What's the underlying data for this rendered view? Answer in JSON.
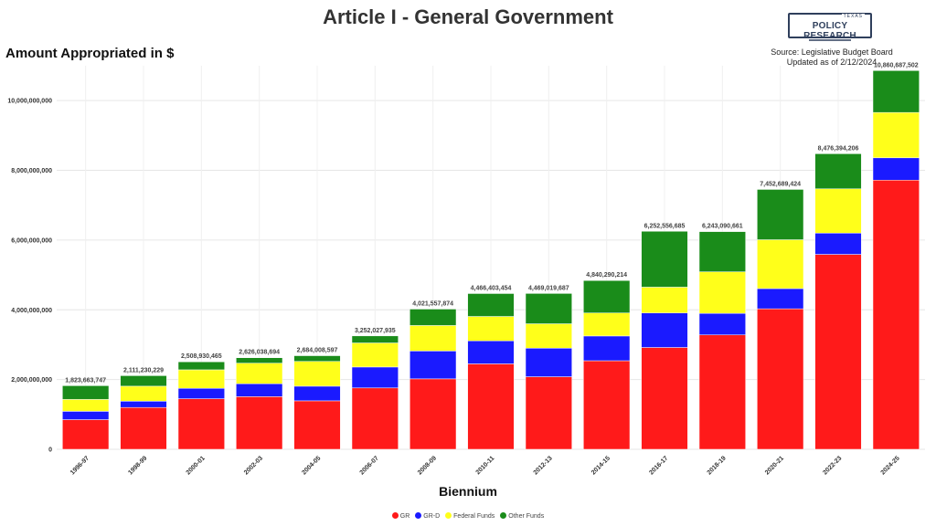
{
  "chart_data": {
    "type": "bar",
    "stacked": true,
    "title": "Article I - General Government",
    "ylabel": "Amount Appropriated in $",
    "xlabel": "Biennium",
    "ylim": [
      0,
      11000000000
    ],
    "yticks": [
      0,
      2000000000,
      4000000000,
      6000000000,
      8000000000,
      10000000000
    ],
    "ytick_labels": [
      "0",
      "2,000,000,000",
      "4,000,000,000",
      "6,000,000,000",
      "8,000,000,000",
      "10,000,000,000"
    ],
    "grid": true,
    "legend": "bottom-center",
    "categories": [
      "1996-97",
      "1998-99",
      "2000-01",
      "2002-03",
      "2004-05",
      "2006-07",
      "2008-09",
      "2010-11",
      "2012-13",
      "2014-15",
      "2016-17",
      "2018-19",
      "2020-21",
      "2022-23",
      "2024-25"
    ],
    "series": [
      {
        "name": "GR",
        "color": "#ff1a1a",
        "values": [
          850000000,
          1200000000,
          1450000000,
          1510000000,
          1390000000,
          1760000000,
          2020000000,
          2450000000,
          2080000000,
          2540000000,
          2920000000,
          3280000000,
          4030000000,
          5590000000,
          7720000000
        ]
      },
      {
        "name": "GR-D",
        "color": "#1a1aff",
        "values": [
          240000000,
          180000000,
          300000000,
          370000000,
          420000000,
          600000000,
          800000000,
          660000000,
          820000000,
          710000000,
          990000000,
          620000000,
          580000000,
          610000000,
          640000000
        ]
      },
      {
        "name": "Federal Funds",
        "color": "#ffff1a",
        "values": [
          340000000,
          430000000,
          530000000,
          590000000,
          710000000,
          690000000,
          730000000,
          700000000,
          700000000,
          660000000,
          740000000,
          1190000000,
          1400000000,
          1270000000,
          1300000000
        ]
      },
      {
        "name": "Other Funds",
        "color": "#1a8c1a",
        "values": [
          393663747,
          301230229,
          228930465,
          156038694,
          164008597,
          202027935,
          471557874,
          656403454,
          869019687,
          930290214,
          1602556685,
          1153090661,
          1442689424,
          1006394206,
          1200687502
        ]
      }
    ],
    "totals": [
      1823663747,
      2111230229,
      2508930465,
      2626038694,
      2684008597,
      3252027935,
      4021557874,
      4466403454,
      4469019687,
      4840290214,
      6252556685,
      6243090661,
      7452689424,
      8476394206,
      10860687502
    ],
    "total_labels": [
      "1,823,663,747",
      "2,111,230,229",
      "2,508,930,465",
      "2,626,038,694",
      "2,684,008,597",
      "3,252,027,935",
      "4,021,557,874",
      "4,466,403,454",
      "4,469,019,687",
      "4,840,290,214",
      "6,252,556,685",
      "6,243,090,661",
      "7,452,689,424",
      "8,476,394,206",
      "10,860,687,502"
    ]
  },
  "branding": {
    "logo_top": "TEXAS",
    "logo_main": "POLICY RESEARCH",
    "source_line1": "Source: Legislative Budget Board",
    "source_line2": "Updated as of 2/12/2024"
  }
}
